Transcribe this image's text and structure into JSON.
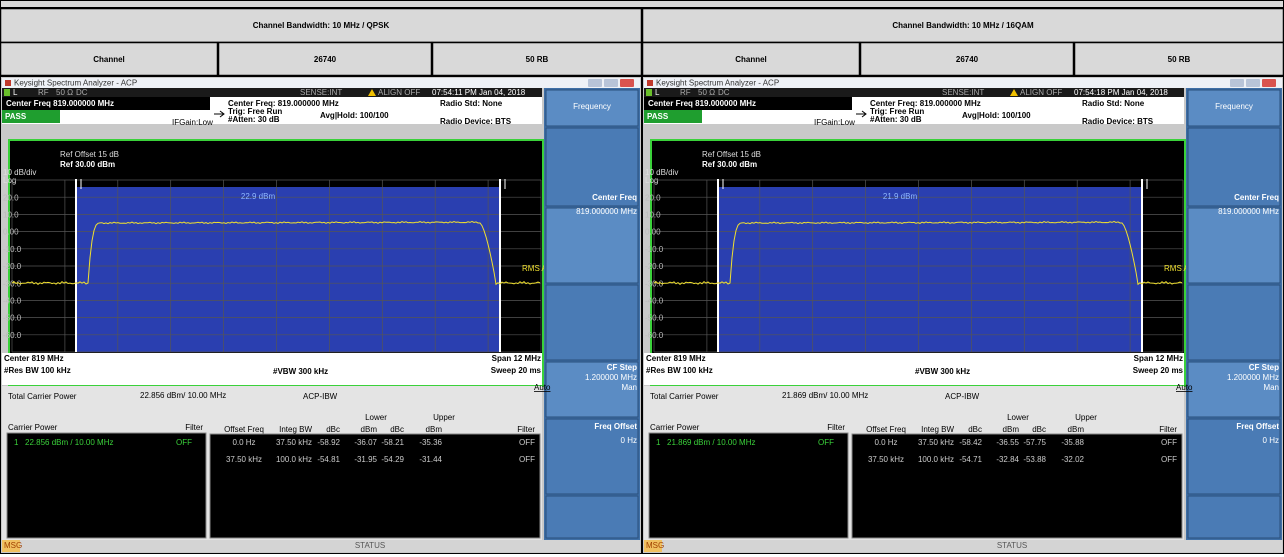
{
  "header": {
    "columns": [
      {
        "title": "Channel Bandwidth: 10 MHz / QPSK",
        "cells": [
          "Channel",
          "26740",
          "50 RB"
        ]
      },
      {
        "title": "Channel Bandwidth: 10 MHz / 16QAM",
        "cells": [
          "Channel",
          "26740",
          "50 RB"
        ]
      }
    ]
  },
  "panels": [
    {
      "window_title": "Keysight Spectrum Analyzer - ACP",
      "status_bar": {
        "mode": "L",
        "rf": "RF",
        "impedance": "50 Ω",
        "coupling": "DC",
        "sense": "SENSE:INT",
        "align": "ALIGN OFF",
        "timestamp": "07:54:11 PM Jan 04, 2018"
      },
      "center_freq_title": "Center Freq 819.000000 MHz",
      "pass": "PASS",
      "settings": [
        "Center Freq: 819.000000 MHz",
        "Trig: Free Run",
        "#Atten: 30 dB"
      ],
      "avg_hold": "Avg|Hold: 100/100",
      "if_gain": "IFGain:Low",
      "radio_std": "Radio Std: None",
      "radio_device": "Radio Device: BTS",
      "graph": {
        "scale": "10 dB/div",
        "log": "Log",
        "ref_offset": "Ref Offset 15 dB",
        "ref_level": "Ref 30.00 dBm",
        "yticks": [
          "20.0",
          "10.0",
          "0.00",
          "-10.0",
          "-20.0",
          "-30.0",
          "-40.0",
          "-50.0",
          "-60.0"
        ],
        "band_power": "22.9 dBm",
        "trace_label": "RMS AVG",
        "center": "Center 819 MHz",
        "res_bw": "#Res BW 100 kHz",
        "vbw": "#VBW 300 kHz",
        "span": "Span 12 MHz",
        "sweep": "Sweep 20 ms"
      },
      "results": {
        "total_label": "Total Carrier Power",
        "total_value": "22.856 dBm/ 10.00 MHz",
        "mode": "ACP-IBW",
        "carrier_header": [
          "Carrier Power",
          "Filter"
        ],
        "carrier_row": [
          "1",
          "22.856 dBm / 10.00 MHz",
          "OFF"
        ],
        "lower": "Lower",
        "upper": "Upper",
        "acp_header": [
          "Offset Freq",
          "Integ BW",
          "dBc",
          "dBm",
          "dBc",
          "dBm",
          "Filter"
        ],
        "acp_rows": [
          [
            "0.0 Hz",
            "37.50 kHz",
            "-58.92",
            "-36.07",
            "-58.21",
            "-35.36",
            "OFF"
          ],
          [
            "37.50 kHz",
            "100.0 kHz",
            "-54.81",
            "-31.95",
            "-54.29",
            "-31.44",
            "OFF"
          ]
        ]
      },
      "softkeys": {
        "menu": "Frequency",
        "center_freq": "Center Freq",
        "center_freq_value": "819.000000 MHz",
        "cf_step": "CF Step",
        "cf_step_value": "1.200000 MHz",
        "auto": "Auto",
        "man": "Man",
        "freq_offset": "Freq Offset",
        "freq_offset_value": "0 Hz"
      },
      "footer": {
        "msg": "MSG",
        "status": "STATUS"
      }
    },
    {
      "window_title": "Keysight Spectrum Analyzer - ACP",
      "status_bar": {
        "mode": "L",
        "rf": "RF",
        "impedance": "50 Ω",
        "coupling": "DC",
        "sense": "SENSE:INT",
        "align": "ALIGN OFF",
        "timestamp": "07:54:18 PM Jan 04, 2018"
      },
      "center_freq_title": "Center Freq 819.000000 MHz",
      "pass": "PASS",
      "settings": [
        "Center Freq: 819.000000 MHz",
        "Trig: Free Run",
        "#Atten: 30 dB"
      ],
      "avg_hold": "Avg|Hold: 100/100",
      "if_gain": "IFGain:Low",
      "radio_std": "Radio Std: None",
      "radio_device": "Radio Device: BTS",
      "graph": {
        "scale": "10 dB/div",
        "log": "Log",
        "ref_offset": "Ref Offset 15 dB",
        "ref_level": "Ref 30.00 dBm",
        "yticks": [
          "20.0",
          "10.0",
          "0.00",
          "-10.0",
          "-20.0",
          "-30.0",
          "-40.0",
          "-50.0",
          "-60.0"
        ],
        "band_power": "21.9 dBm",
        "trace_label": "RMS AVG",
        "center": "Center 819 MHz",
        "res_bw": "#Res BW 100 kHz",
        "vbw": "#VBW 300 kHz",
        "span": "Span 12 MHz",
        "sweep": "Sweep 20 ms"
      },
      "results": {
        "total_label": "Total Carrier Power",
        "total_value": "21.869 dBm/ 10.00 MHz",
        "mode": "ACP-IBW",
        "carrier_header": [
          "Carrier Power",
          "Filter"
        ],
        "carrier_row": [
          "1",
          "21.869 dBm / 10.00 MHz",
          "OFF"
        ],
        "lower": "Lower",
        "upper": "Upper",
        "acp_header": [
          "Offset Freq",
          "Integ BW",
          "dBc",
          "dBm",
          "dBc",
          "dBm",
          "Filter"
        ],
        "acp_rows": [
          [
            "0.0 Hz",
            "37.50 kHz",
            "-58.42",
            "-36.55",
            "-57.75",
            "-35.88",
            "OFF"
          ],
          [
            "37.50 kHz",
            "100.0 kHz",
            "-54.71",
            "-32.84",
            "-53.88",
            "-32.02",
            "OFF"
          ]
        ]
      },
      "softkeys": {
        "menu": "Frequency",
        "center_freq": "Center Freq",
        "center_freq_value": "819.000000 MHz",
        "cf_step": "CF Step",
        "cf_step_value": "1.200000 MHz",
        "auto": "Auto",
        "man": "Man",
        "freq_offset": "Freq Offset",
        "freq_offset_value": "0 Hz"
      },
      "footer": {
        "msg": "MSG",
        "status": "STATUS"
      }
    }
  ]
}
